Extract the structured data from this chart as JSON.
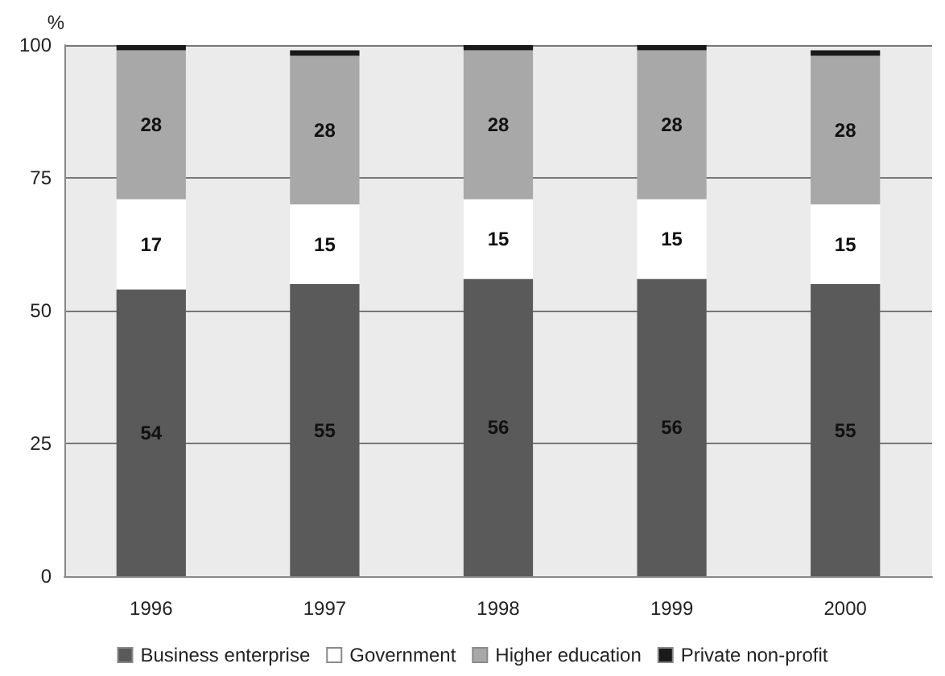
{
  "chart_data": {
    "type": "bar",
    "stacked": true,
    "ylabel": "%",
    "categories": [
      "1996",
      "1997",
      "1998",
      "1999",
      "2000"
    ],
    "series": [
      {
        "name": "Business enterprise",
        "color": "#5a5a5a",
        "values": [
          54,
          55,
          56,
          56,
          55
        ],
        "value_labels": [
          "54",
          "55",
          "56",
          "56",
          "55"
        ]
      },
      {
        "name": "Government",
        "color": "#ffffff",
        "values": [
          17,
          15,
          15,
          15,
          15
        ],
        "value_labels": [
          "17",
          "15",
          "15",
          "15",
          "15"
        ]
      },
      {
        "name": "Higher education",
        "color": "#a8a8a8",
        "values": [
          28,
          28,
          28,
          28,
          28
        ],
        "value_labels": [
          "28",
          "28",
          "28",
          "28",
          "28"
        ]
      },
      {
        "name": "Private non-profit",
        "color": "#1a1a1a",
        "values": [
          1,
          1,
          1,
          1,
          1
        ]
      }
    ],
    "ylim": [
      0,
      100
    ],
    "yticks": [
      0,
      25,
      50,
      75,
      100
    ],
    "grid": "y",
    "legend": "bottom"
  }
}
